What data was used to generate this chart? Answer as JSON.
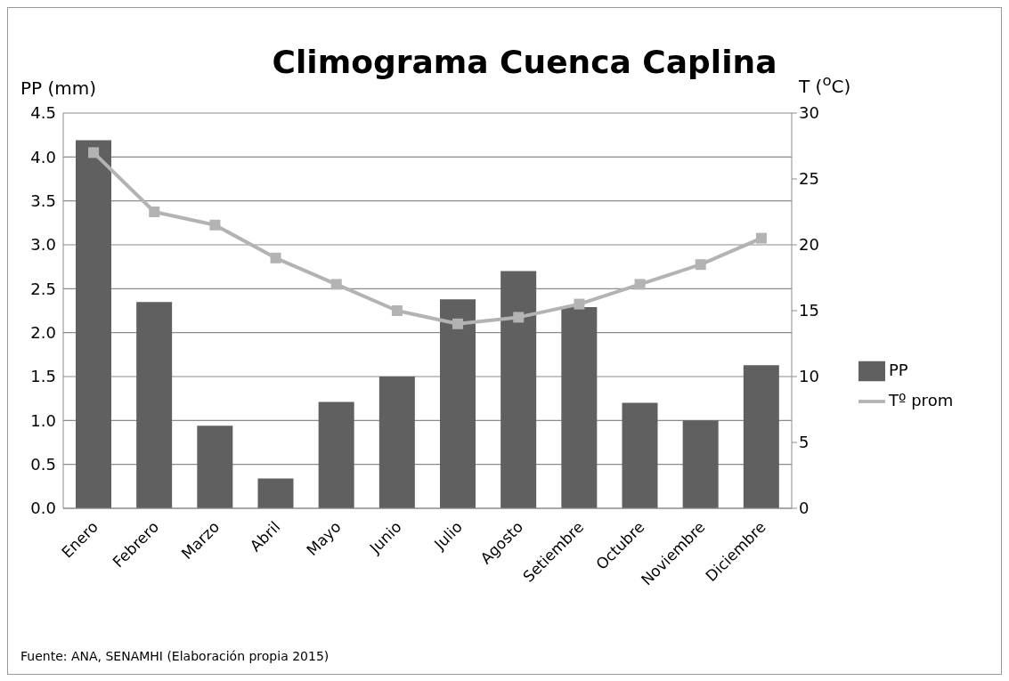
{
  "chart_data": {
    "type": "bar",
    "title": "Climograma Cuenca Caplina",
    "ylabel": "PP (mm)",
    "y2label": "T ($^{o}$C)",
    "categories": [
      "Enero",
      "Febrero",
      "Marzo",
      "Abril",
      "Mayo",
      "Junio",
      "Julio",
      "Agosto",
      "Setiembre",
      "Octubre",
      "Noviembre",
      "Diciembre"
    ],
    "series": [
      {
        "name": "PP",
        "color": "#606060",
        "values": [
          4.19,
          2.35,
          0.94,
          0.34,
          1.21,
          1.5,
          2.38,
          2.7,
          2.29,
          1.2,
          1.0,
          1.63
        ]
      },
      {
        "name": "Tº prom",
        "type": "line",
        "axis": "y2",
        "color": "#b3b3b3",
        "marker": "square",
        "values": [
          27.0,
          22.5,
          21.5,
          19.0,
          17.0,
          15.0,
          14.0,
          14.5,
          15.5,
          17.0,
          18.5,
          20.5
        ]
      }
    ],
    "ylim": [
      0,
      4.5
    ],
    "yticks": [
      {
        "value": 0,
        "label": "0.0"
      },
      {
        "value": 0.5,
        "label": "0.5"
      },
      {
        "value": 1,
        "label": "1.0"
      },
      {
        "value": 1.5,
        "label": "1.5"
      },
      {
        "value": 2,
        "label": "2.0"
      },
      {
        "value": 2.5,
        "label": "2.5"
      },
      {
        "value": 3,
        "label": "3.0"
      },
      {
        "value": 3.5,
        "label": "3.5"
      },
      {
        "value": 4,
        "label": "4.0"
      },
      {
        "value": 4.5,
        "label": "4.5"
      }
    ],
    "y2lim": [
      0,
      30
    ],
    "y2ticks": [
      0,
      5,
      10,
      15,
      20,
      25,
      30
    ],
    "grid": "y",
    "legend": "right",
    "annotations": [
      "Fuente: ANA, SENAMHI (Elaboración propia  2015)"
    ]
  }
}
